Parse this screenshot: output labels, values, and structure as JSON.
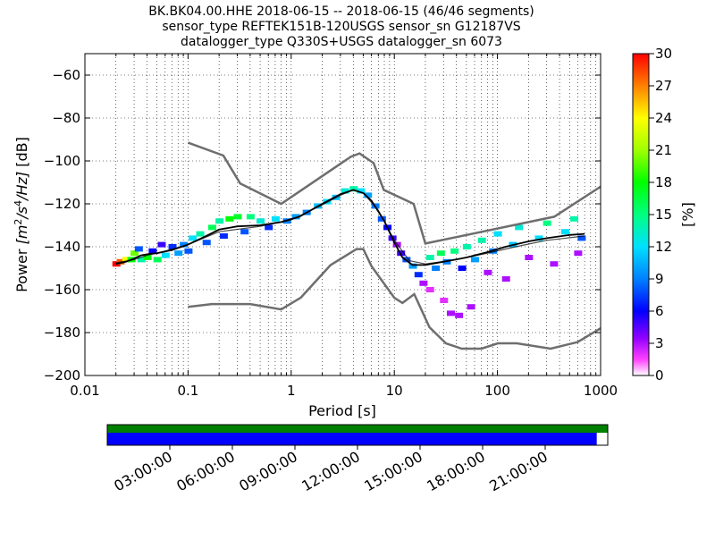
{
  "title_lines": [
    "BK.BK04.00.HHE   2018-06-15 -- 2018-06-15  (46/46 segments)",
    "sensor_type REFTEK151B-120USGS sensor_sn G12187VS",
    "datalogger_type Q330S+USGS datalogger_sn 6073"
  ],
  "chart_data": [
    {
      "type": "heatmap",
      "description_kind": "probabilistic power spectral density",
      "xlabel": "Period [s]",
      "ylabel": "Power [m²/s⁴/Hz] [dB]",
      "ylabel_parts": [
        "Power ",
        "[m",
        "2",
        "/s",
        "4",
        "/Hz]",
        " [dB]"
      ],
      "x_scale": "log",
      "xlim": [
        0.01,
        1000
      ],
      "ylim": [
        -200,
        -50
      ],
      "x_ticks": [
        0.01,
        0.1,
        1,
        10,
        100,
        1000
      ],
      "x_tick_labels": [
        "0.01",
        "0.1",
        "1",
        "10",
        "100",
        "1000"
      ],
      "y_ticks": [
        -200,
        -180,
        -160,
        -140,
        -120,
        -100,
        -80,
        -60
      ],
      "y_tick_labels": [
        "−200",
        "−180",
        "−160",
        "−140",
        "−120",
        "−100",
        "−80",
        "−60"
      ],
      "grid": "dotted",
      "colorbar": {
        "label": "[%]",
        "range": [
          0,
          30
        ],
        "ticks": [
          0,
          3,
          6,
          9,
          12,
          15,
          18,
          21,
          24,
          27,
          30
        ],
        "colormap_stops": [
          {
            "v": 0,
            "c": "#ffffff"
          },
          {
            "v": 1.5,
            "c": "#ff40ff"
          },
          {
            "v": 3.5,
            "c": "#9000ff"
          },
          {
            "v": 6,
            "c": "#0000ff"
          },
          {
            "v": 9,
            "c": "#0080ff"
          },
          {
            "v": 12,
            "c": "#00e0ff"
          },
          {
            "v": 15,
            "c": "#00ff80"
          },
          {
            "v": 18,
            "c": "#00ff00"
          },
          {
            "v": 21,
            "c": "#a0ff00"
          },
          {
            "v": 24,
            "c": "#ffff00"
          },
          {
            "v": 27,
            "c": "#ff8000"
          },
          {
            "v": 30,
            "c": "#ff0000"
          }
        ]
      },
      "noise_model_color": "#6e6e6e",
      "high_noise_model": [
        [
          0.1,
          -91.5
        ],
        [
          0.22,
          -97.5
        ],
        [
          0.32,
          -110.5
        ],
        [
          0.8,
          -120
        ],
        [
          3.8,
          -98
        ],
        [
          4.6,
          -96.5
        ],
        [
          6.3,
          -101
        ],
        [
          7.9,
          -113.5
        ],
        [
          15.4,
          -120
        ],
        [
          20,
          -138.5
        ],
        [
          354.8,
          -126
        ],
        [
          1000,
          -112
        ]
      ],
      "low_noise_model": [
        [
          0.1,
          -168
        ],
        [
          0.17,
          -166.7
        ],
        [
          0.4,
          -166.7
        ],
        [
          0.8,
          -169.2
        ],
        [
          1.24,
          -163.7
        ],
        [
          2.4,
          -148.6
        ],
        [
          4.3,
          -141.1
        ],
        [
          5,
          -141.1
        ],
        [
          6,
          -149
        ],
        [
          10,
          -163.8
        ],
        [
          12,
          -166.2
        ],
        [
          15.6,
          -162.1
        ],
        [
          21.9,
          -177.5
        ],
        [
          31.6,
          -185
        ],
        [
          45,
          -187.5
        ],
        [
          70,
          -187.5
        ],
        [
          101,
          -185
        ],
        [
          154,
          -185
        ],
        [
          328,
          -187.5
        ],
        [
          600,
          -184.4
        ],
        [
          1000,
          -178
        ]
      ],
      "mean_psd": [
        [
          0.02,
          -148
        ],
        [
          0.025,
          -147
        ],
        [
          0.03,
          -145.5
        ],
        [
          0.035,
          -144
        ],
        [
          0.04,
          -143.5
        ],
        [
          0.05,
          -143
        ],
        [
          0.07,
          -141.5
        ],
        [
          0.1,
          -139
        ],
        [
          0.15,
          -135
        ],
        [
          0.2,
          -132
        ],
        [
          0.3,
          -130.5
        ],
        [
          0.5,
          -130
        ],
        [
          0.8,
          -128.5
        ],
        [
          1.2,
          -126
        ],
        [
          2,
          -120
        ],
        [
          3,
          -115.5
        ],
        [
          4,
          -113.5
        ],
        [
          5,
          -115
        ],
        [
          6,
          -118.5
        ],
        [
          8,
          -128
        ],
        [
          10,
          -138
        ],
        [
          12,
          -145
        ],
        [
          15,
          -148.5
        ],
        [
          20,
          -148.5
        ],
        [
          30,
          -147
        ],
        [
          50,
          -145
        ],
        [
          80,
          -142.5
        ],
        [
          120,
          -140
        ],
        [
          200,
          -137.5
        ],
        [
          300,
          -136
        ],
        [
          500,
          -134.5
        ],
        [
          700,
          -134
        ]
      ],
      "mode_psd": [
        [
          0.02,
          -147.5
        ],
        [
          0.03,
          -146
        ],
        [
          0.04,
          -144
        ],
        [
          0.06,
          -142
        ],
        [
          0.1,
          -139
        ],
        [
          0.2,
          -133
        ],
        [
          0.5,
          -130.5
        ],
        [
          1,
          -127.5
        ],
        [
          2,
          -120.5
        ],
        [
          3,
          -116
        ],
        [
          4,
          -113.5
        ],
        [
          5,
          -115
        ],
        [
          7,
          -123
        ],
        [
          10,
          -137
        ],
        [
          14,
          -146.5
        ],
        [
          20,
          -148
        ],
        [
          40,
          -146
        ],
        [
          80,
          -143
        ],
        [
          150,
          -140
        ],
        [
          300,
          -137
        ],
        [
          700,
          -135
        ]
      ],
      "psd_cells": [
        {
          "period": 0.02,
          "power": -148,
          "percent": 30
        },
        {
          "period": 0.022,
          "power": -147,
          "percent": 28
        },
        {
          "period": 0.025,
          "power": -146,
          "percent": 24
        },
        {
          "period": 0.028,
          "power": -146,
          "percent": 18
        },
        {
          "period": 0.03,
          "power": -143,
          "percent": 20
        },
        {
          "period": 0.033,
          "power": -141,
          "percent": 8
        },
        {
          "period": 0.035,
          "power": -146,
          "percent": 14
        },
        {
          "period": 0.04,
          "power": -145,
          "percent": 18
        },
        {
          "period": 0.045,
          "power": -142,
          "percent": 6
        },
        {
          "period": 0.05,
          "power": -146,
          "percent": 16
        },
        {
          "period": 0.055,
          "power": -139,
          "percent": 5
        },
        {
          "period": 0.06,
          "power": -144,
          "percent": 12
        },
        {
          "period": 0.07,
          "power": -140,
          "percent": 7
        },
        {
          "period": 0.08,
          "power": -143,
          "percent": 10
        },
        {
          "period": 0.09,
          "power": -139,
          "percent": 9
        },
        {
          "period": 0.1,
          "power": -142,
          "percent": 8
        },
        {
          "period": 0.11,
          "power": -136,
          "percent": 12
        },
        {
          "period": 0.13,
          "power": -134,
          "percent": 14
        },
        {
          "period": 0.15,
          "power": -138,
          "percent": 8
        },
        {
          "period": 0.17,
          "power": -131,
          "percent": 16
        },
        {
          "period": 0.2,
          "power": -128,
          "percent": 14
        },
        {
          "period": 0.22,
          "power": -135,
          "percent": 7
        },
        {
          "period": 0.25,
          "power": -127,
          "percent": 18
        },
        {
          "period": 0.3,
          "power": -126,
          "percent": 17
        },
        {
          "period": 0.35,
          "power": -133,
          "percent": 8
        },
        {
          "period": 0.4,
          "power": -126,
          "percent": 15
        },
        {
          "period": 0.5,
          "power": -128,
          "percent": 13
        },
        {
          "period": 0.6,
          "power": -131,
          "percent": 7
        },
        {
          "period": 0.7,
          "power": -127,
          "percent": 12
        },
        {
          "period": 0.9,
          "power": -128,
          "percent": 9
        },
        {
          "period": 1.1,
          "power": -126,
          "percent": 10
        },
        {
          "period": 1.4,
          "power": -124,
          "percent": 9
        },
        {
          "period": 1.8,
          "power": -121,
          "percent": 11
        },
        {
          "period": 2.2,
          "power": -119,
          "percent": 12
        },
        {
          "period": 2.7,
          "power": -117,
          "percent": 11
        },
        {
          "period": 3.3,
          "power": -114,
          "percent": 13
        },
        {
          "period": 4.0,
          "power": -113,
          "percent": 14
        },
        {
          "period": 4.7,
          "power": -114,
          "percent": 12
        },
        {
          "period": 5.5,
          "power": -116,
          "percent": 10
        },
        {
          "period": 6.5,
          "power": -121,
          "percent": 9
        },
        {
          "period": 7.5,
          "power": -127,
          "percent": 8
        },
        {
          "period": 8.5,
          "power": -131,
          "percent": 6
        },
        {
          "period": 9.5,
          "power": -136,
          "percent": 5
        },
        {
          "period": 10.5,
          "power": -139,
          "percent": 3
        },
        {
          "period": 11.5,
          "power": -143,
          "percent": 5
        },
        {
          "period": 13.0,
          "power": -146,
          "percent": 8
        },
        {
          "period": 15.0,
          "power": -149,
          "percent": 10
        },
        {
          "period": 17.0,
          "power": -153,
          "percent": 7
        },
        {
          "period": 19.0,
          "power": -157,
          "percent": 3
        },
        {
          "period": 22.0,
          "power": -145,
          "percent": 14
        },
        {
          "period": 22.0,
          "power": -160,
          "percent": 2
        },
        {
          "period": 25.0,
          "power": -150,
          "percent": 9
        },
        {
          "period": 28.0,
          "power": -143,
          "percent": 16
        },
        {
          "period": 30.0,
          "power": -165,
          "percent": 2
        },
        {
          "period": 32.0,
          "power": -147,
          "percent": 9
        },
        {
          "period": 35.0,
          "power": -171,
          "percent": 3
        },
        {
          "period": 38.0,
          "power": -142,
          "percent": 15
        },
        {
          "period": 42.0,
          "power": -172,
          "percent": 3
        },
        {
          "period": 45.0,
          "power": -150,
          "percent": 6
        },
        {
          "period": 50.0,
          "power": -140,
          "percent": 14
        },
        {
          "period": 55.0,
          "power": -168,
          "percent": 3
        },
        {
          "period": 60.0,
          "power": -146,
          "percent": 10
        },
        {
          "period": 70.0,
          "power": -137,
          "percent": 14
        },
        {
          "period": 80.0,
          "power": -152,
          "percent": 3
        },
        {
          "period": 90.0,
          "power": -142,
          "percent": 9
        },
        {
          "period": 100.0,
          "power": -134,
          "percent": 12
        },
        {
          "period": 120.0,
          "power": -155,
          "percent": 3
        },
        {
          "period": 140.0,
          "power": -139,
          "percent": 11
        },
        {
          "period": 160.0,
          "power": -131,
          "percent": 13
        },
        {
          "period": 200.0,
          "power": -145,
          "percent": 3
        },
        {
          "period": 250.0,
          "power": -136,
          "percent": 12
        },
        {
          "period": 300.0,
          "power": -129,
          "percent": 15
        },
        {
          "period": 350.0,
          "power": -148,
          "percent": 3
        },
        {
          "period": 450.0,
          "power": -133,
          "percent": 12
        },
        {
          "period": 550.0,
          "power": -127,
          "percent": 14
        },
        {
          "period": 600.0,
          "power": -143,
          "percent": 3
        },
        {
          "period": 650.0,
          "power": -136,
          "percent": 8
        }
      ]
    },
    {
      "type": "timeline",
      "description_kind": "data coverage bar",
      "tick_labels": [
        "03:00:00",
        "06:00:00",
        "09:00:00",
        "12:00:00",
        "15:00:00",
        "18:00:00",
        "21:00:00"
      ],
      "time_range_hours": [
        0,
        24
      ],
      "tick_hours": [
        3,
        6,
        9,
        12,
        15,
        18,
        21
      ],
      "upper_band": {
        "color": "#008000",
        "coverage_fraction": 1.0
      },
      "lower_band": {
        "color": "#0000ff",
        "coverage_fraction": 0.978
      }
    }
  ]
}
